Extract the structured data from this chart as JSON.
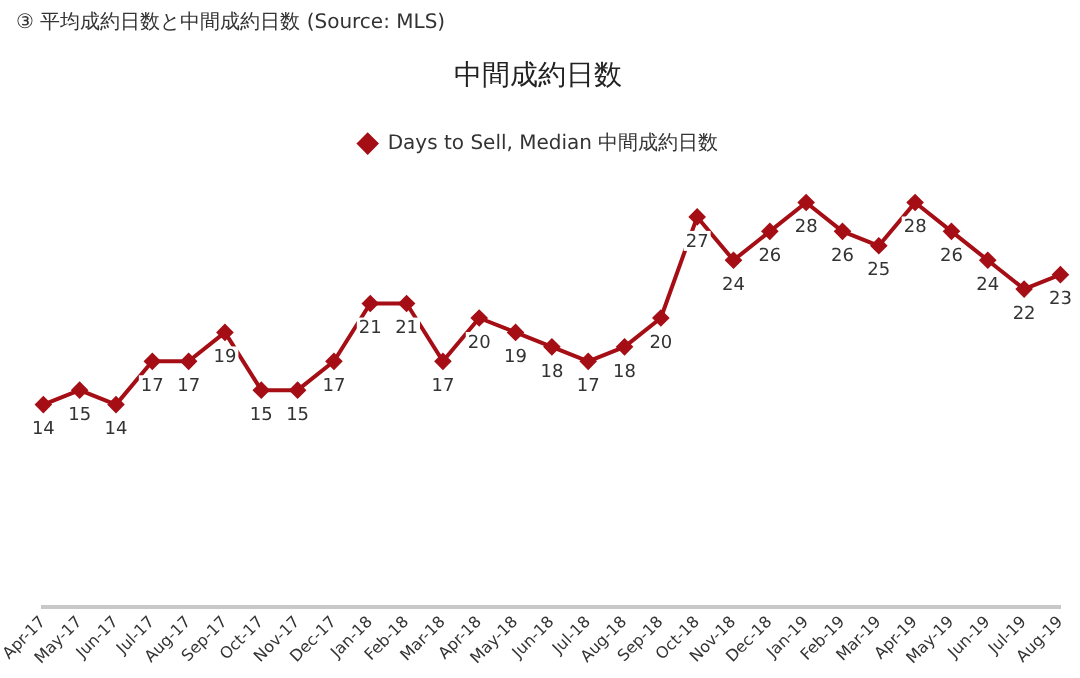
{
  "chart_data": {
    "type": "line",
    "title": "中間成約日数",
    "annotations": [
      "③ 平均成約日数と中間成約日数 (Source: MLS)"
    ],
    "categories": [
      "Apr-17",
      "May-17",
      "Jun-17",
      "Jul-17",
      "Aug-17",
      "Sep-17",
      "Oct-17",
      "Nov-17",
      "Dec-17",
      "Jan-18",
      "Feb-18",
      "Mar-18",
      "Apr-18",
      "May-18",
      "Jun-18",
      "Jul-18",
      "Aug-18",
      "Sep-18",
      "Oct-18",
      "Nov-18",
      "Dec-18",
      "Jan-19",
      "Feb-19",
      "Mar-19",
      "Apr-19",
      "May-19",
      "Jun-19",
      "Jul-19",
      "Aug-19"
    ],
    "series": [
      {
        "name": "Days to Sell, Median 中間成約日数",
        "color": "#a50e15",
        "values": [
          14,
          15,
          14,
          17,
          17,
          19,
          15,
          15,
          17,
          21,
          21,
          17,
          20,
          19,
          18,
          17,
          18,
          20,
          27,
          24,
          26,
          28,
          26,
          25,
          28,
          26,
          24,
          22,
          23
        ]
      }
    ],
    "data_labels": true,
    "legend": "top",
    "grid": false,
    "marker": "diamond",
    "line_style": "solid"
  }
}
